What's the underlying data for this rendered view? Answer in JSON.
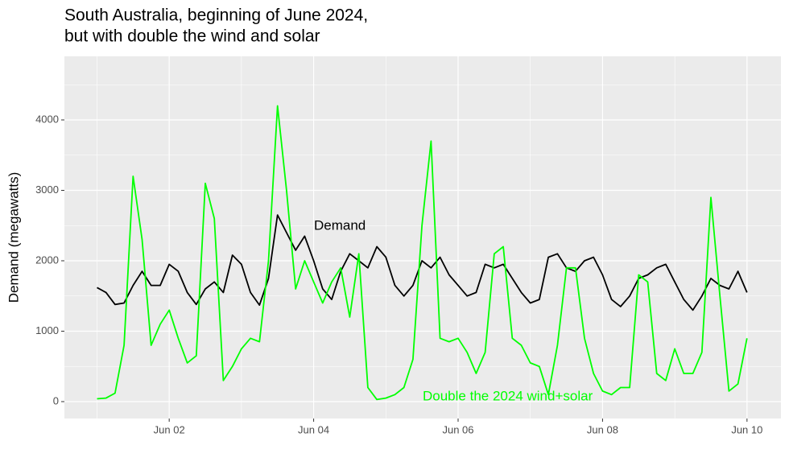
{
  "chart_data": {
    "type": "line",
    "title": [
      "South Australia, beginning of June 2024,",
      "but with double the wind and solar"
    ],
    "y_label": "Demand (megawatts)",
    "annotations": [
      "Demand",
      "Double the 2024 wind+solar"
    ],
    "x": [
      1,
      1.125,
      1.25,
      1.375,
      1.5,
      1.625,
      1.75,
      1.875,
      2,
      2.125,
      2.25,
      2.375,
      2.5,
      2.625,
      2.75,
      2.875,
      3,
      3.125,
      3.25,
      3.375,
      3.5,
      3.625,
      3.75,
      3.875,
      4,
      4.125,
      4.25,
      4.375,
      4.5,
      4.625,
      4.75,
      4.875,
      5,
      5.125,
      5.25,
      5.375,
      5.5,
      5.625,
      5.75,
      5.875,
      6,
      6.125,
      6.25,
      6.375,
      6.5,
      6.625,
      6.75,
      6.875,
      7,
      7.125,
      7.25,
      7.375,
      7.5,
      7.625,
      7.75,
      7.875,
      8,
      8.125,
      8.25,
      8.375,
      8.5,
      8.625,
      8.75,
      8.875,
      9,
      9.125,
      9.25,
      9.375,
      9.5,
      9.625,
      9.75,
      9.875,
      10
    ],
    "series": [
      {
        "name": "Demand",
        "color": "#000000",
        "values": [
          1620,
          1550,
          1380,
          1400,
          1650,
          1850,
          1650,
          1650,
          1950,
          1850,
          1550,
          1380,
          1600,
          1700,
          1550,
          2080,
          1950,
          1550,
          1370,
          1750,
          2650,
          2400,
          2150,
          2350,
          2000,
          1600,
          1450,
          1850,
          2100,
          2000,
          1900,
          2200,
          2050,
          1650,
          1500,
          1650,
          2000,
          1900,
          2050,
          1800,
          1650,
          1500,
          1550,
          1950,
          1900,
          1950,
          1750,
          1550,
          1400,
          1450,
          2050,
          2100,
          1900,
          1850,
          2000,
          2050,
          1800,
          1450,
          1350,
          1500,
          1750,
          1800,
          1900,
          1950,
          1700,
          1450,
          1300,
          1500,
          1750,
          1650,
          1600,
          1850,
          1550
        ]
      },
      {
        "name": "Double the 2024 wind+solar",
        "color": "#00ff00",
        "values": [
          40,
          50,
          120,
          800,
          3200,
          2300,
          800,
          1100,
          1300,
          900,
          550,
          650,
          3100,
          2600,
          300,
          500,
          750,
          900,
          850,
          2000,
          4200,
          3000,
          1600,
          2000,
          1700,
          1400,
          1700,
          1900,
          1200,
          2100,
          200,
          30,
          50,
          100,
          200,
          600,
          2500,
          3700,
          900,
          850,
          900,
          700,
          400,
          700,
          2100,
          2200,
          900,
          800,
          550,
          500,
          100,
          800,
          1900,
          1900,
          900,
          400,
          150,
          100,
          200,
          200,
          1800,
          1700,
          400,
          300,
          750,
          400,
          400,
          700,
          2900,
          1500,
          150,
          250,
          900
        ]
      }
    ],
    "xlim": [
      0.549,
      10.47
    ],
    "xticks": [
      {
        "value": 2,
        "label": "Jun 02"
      },
      {
        "value": 4,
        "label": "Jun 04"
      },
      {
        "value": 6,
        "label": "Jun 06"
      },
      {
        "value": 8,
        "label": "Jun 08"
      },
      {
        "value": 10,
        "label": "Jun 10"
      }
    ],
    "ylim": [
      -240,
      4903
    ],
    "yticks": [
      0,
      1000,
      2000,
      3000,
      4000
    ],
    "grid": true
  }
}
